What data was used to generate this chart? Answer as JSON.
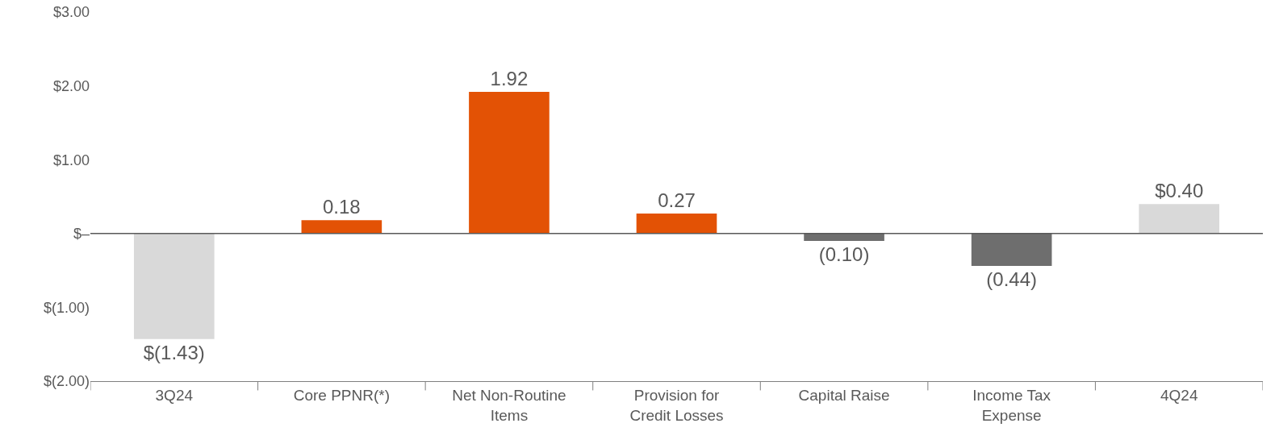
{
  "chart_data": {
    "type": "bar",
    "categories": [
      "3Q24",
      "Core PPNR(*)",
      "Net Non-Routine Items",
      "Provision for Credit Losses",
      "Capital Raise",
      "Income Tax Expense",
      "4Q24"
    ],
    "values": [
      -1.43,
      0.18,
      1.92,
      0.27,
      -0.1,
      -0.44,
      0.4
    ],
    "colors": [
      "#d9d9d9",
      "#e35205",
      "#e35205",
      "#e35205",
      "#6e6e6e",
      "#6e6e6e",
      "#d9d9d9"
    ],
    "value_labels": [
      "$(1.43)",
      "0.18",
      "1.92",
      "0.27",
      "(0.10)",
      "(0.44)",
      "$0.40"
    ],
    "ylim": [
      -2,
      3
    ],
    "yticks": [
      {
        "value": -2,
        "label": "$(2.00)"
      },
      {
        "value": -1,
        "label": "$(1.00)"
      },
      {
        "value": 0,
        "label": "$–"
      },
      {
        "value": 1,
        "label": "$1.00"
      },
      {
        "value": 2,
        "label": "$2.00"
      },
      {
        "value": 3,
        "label": "$3.00"
      }
    ],
    "ref_lines": [
      {
        "axis": "y",
        "value": 0,
        "color": "#595959"
      }
    ],
    "grid": false
  }
}
